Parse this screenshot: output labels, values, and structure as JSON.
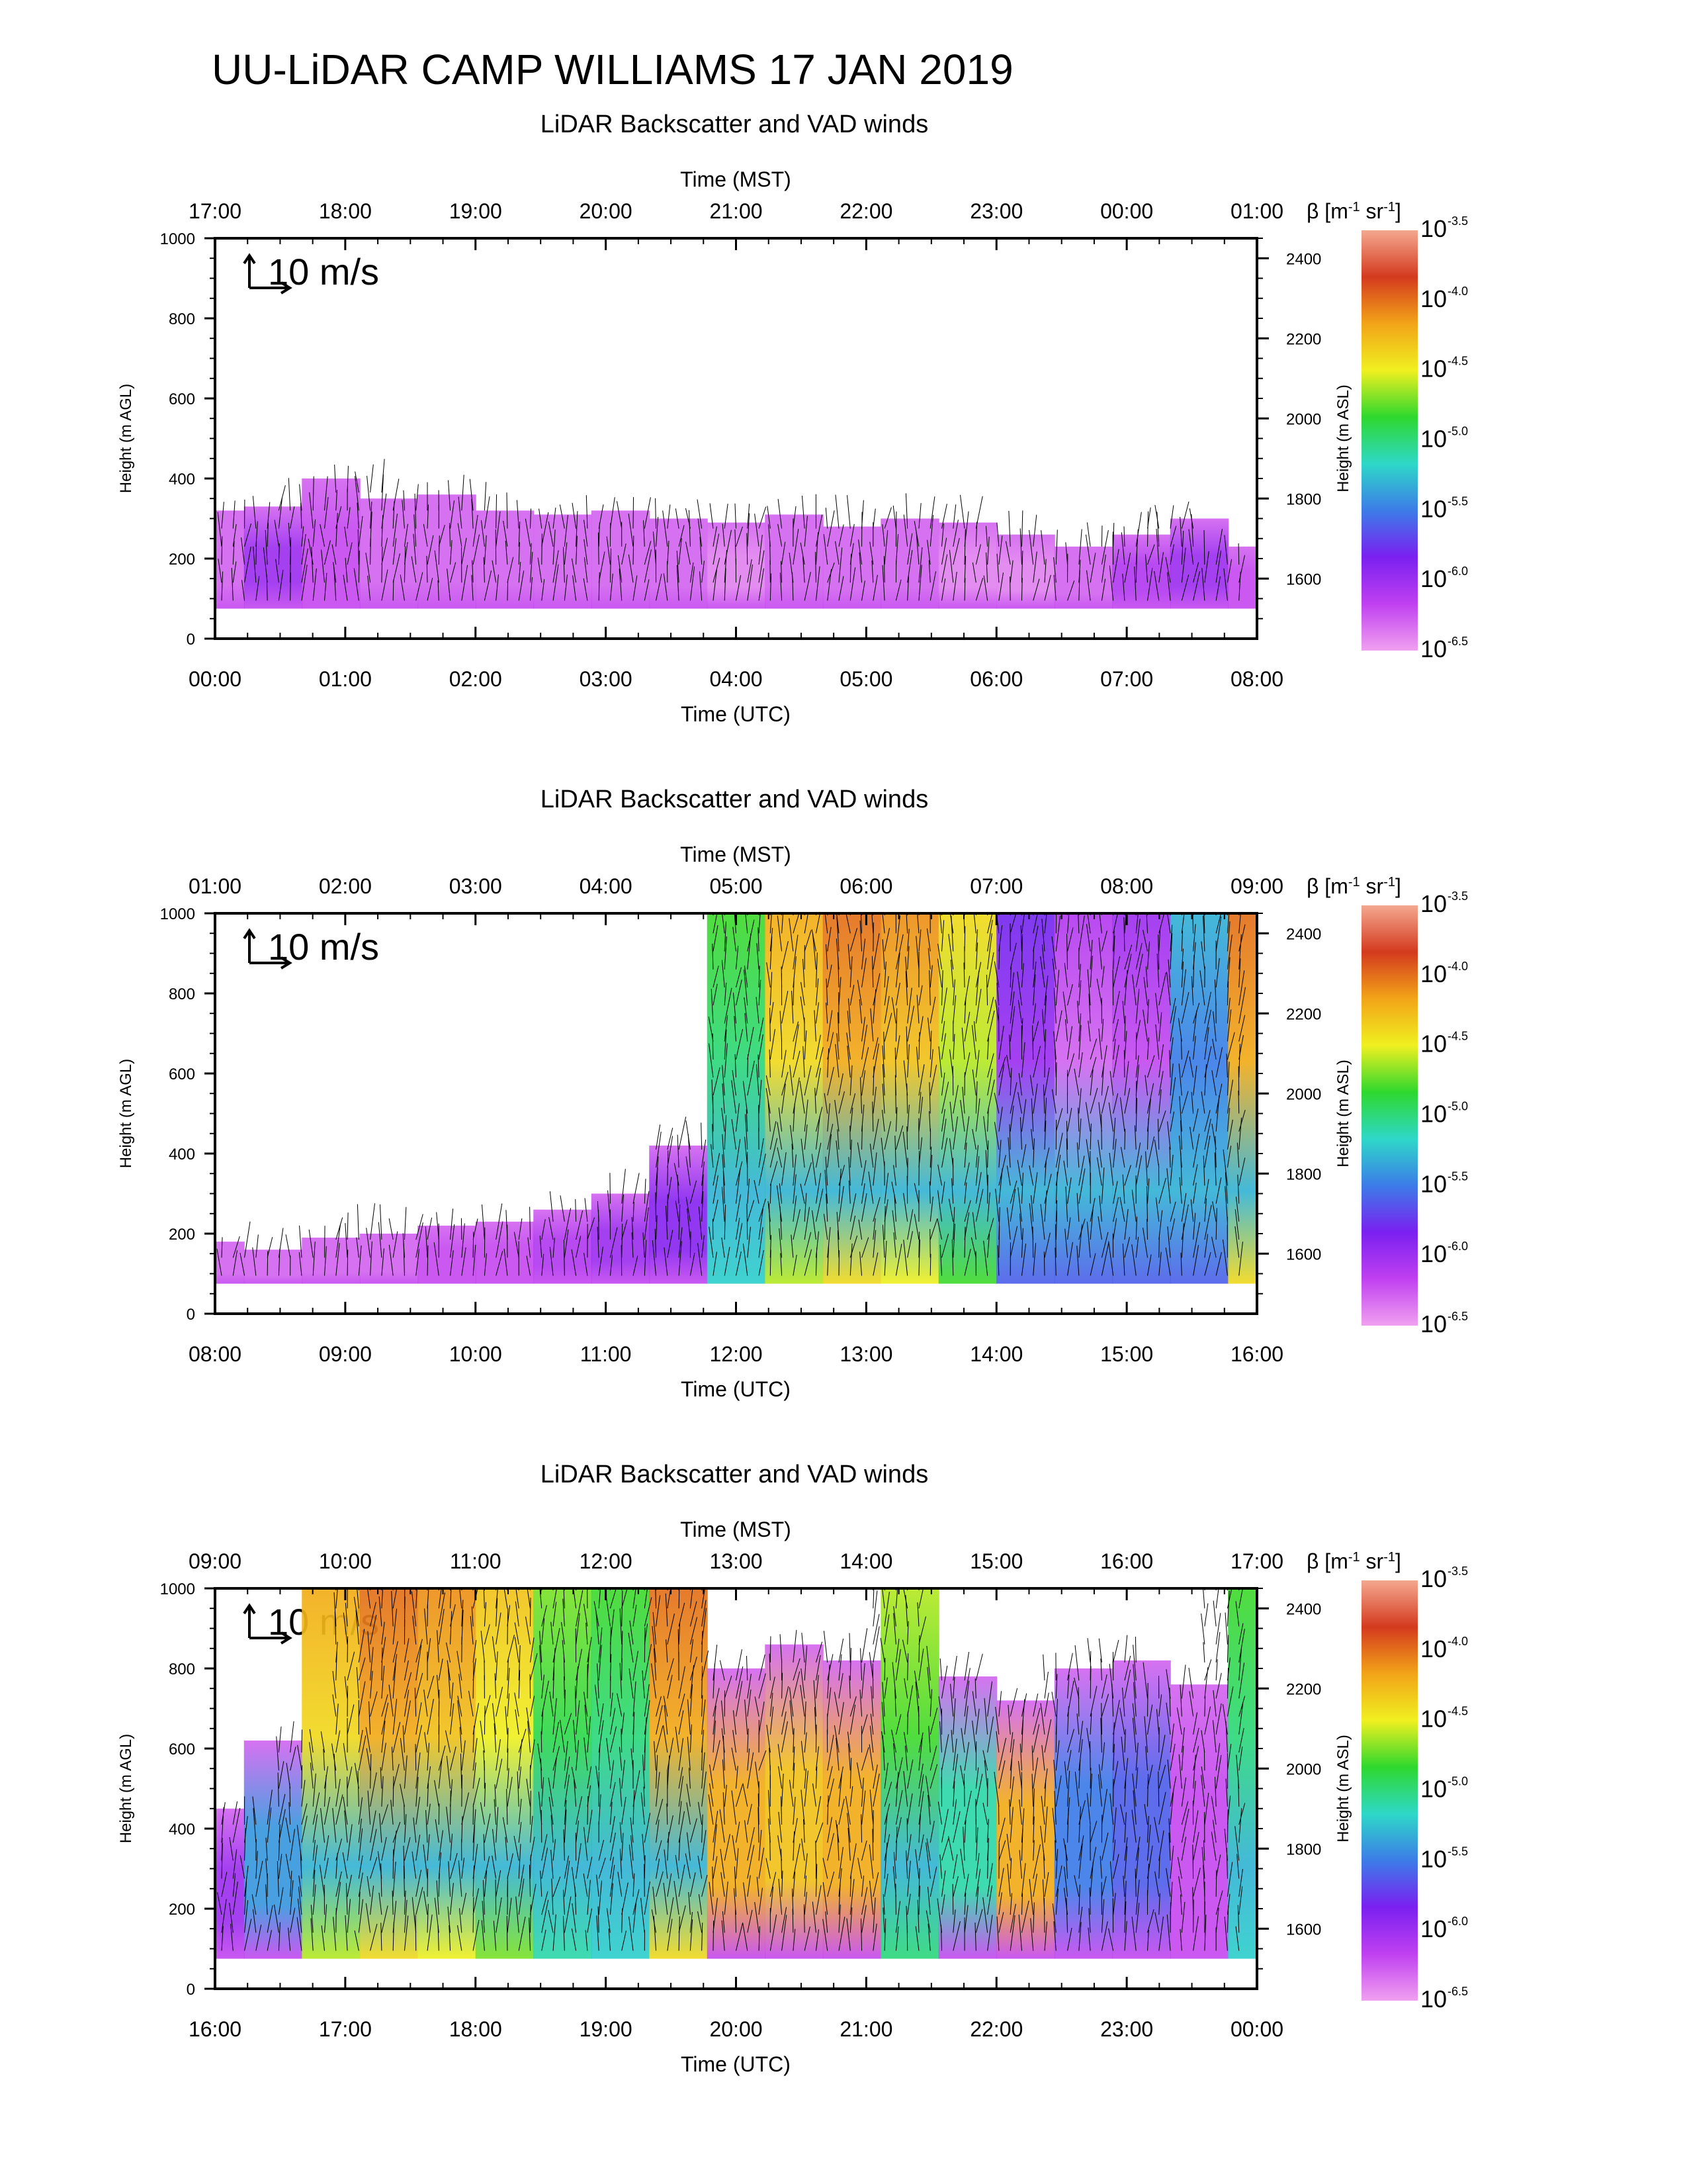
{
  "title": "UU-LiDAR CAMP WILLIAMS 17 JAN 2019",
  "scale_arrow_label": "10 m/s",
  "colorbar": {
    "label_parts": [
      "β",
      "[m",
      "-1",
      " sr",
      "-1",
      "]"
    ],
    "exponents": [
      "-3.5",
      "-4.0",
      "-4.5",
      "-5.0",
      "-5.5",
      "-6.0",
      "-6.5"
    ],
    "base": "10",
    "colors": [
      "#F4A890",
      "#D43A1E",
      "#F2A418",
      "#F0F020",
      "#2ED82E",
      "#2ED8C8",
      "#3C7CE8",
      "#7A20F0",
      "#C040F0",
      "#F0A0F0"
    ]
  },
  "chart_data": [
    {
      "type": "heatmap",
      "title": "LiDAR Backscatter and VAD winds",
      "xlabel_bottom": "Time (UTC)",
      "xlabel_top": "Time (MST)",
      "ylabel_left": "Height (m AGL)",
      "ylabel_right": "Height (m ASL)",
      "x_ticks_bottom": [
        "00:00",
        "01:00",
        "02:00",
        "03:00",
        "04:00",
        "05:00",
        "06:00",
        "07:00",
        "08:00"
      ],
      "x_ticks_top": [
        "17:00",
        "18:00",
        "19:00",
        "20:00",
        "21:00",
        "22:00",
        "23:00",
        "00:00",
        "01:00"
      ],
      "y_ticks_left": [
        "0",
        "200",
        "400",
        "600",
        "800",
        "1000"
      ],
      "y_ticks_right": [
        "1600",
        "1800",
        "2000",
        "2200",
        "2400"
      ],
      "ylim_agl": [
        0,
        1000
      ],
      "ylim_asl": [
        1450,
        2450
      ],
      "colorbar_range_log10": [
        -6.5,
        -3.5
      ],
      "layer_top_agl": [
        320,
        330,
        400,
        350,
        360,
        320,
        310,
        320,
        300,
        290,
        310,
        280,
        300,
        290,
        260,
        230,
        260,
        300,
        230
      ],
      "layer_level_log10": [
        -6.3,
        -6.0,
        -6.2,
        -6.3,
        -6.3,
        -6.3,
        -6.3,
        -6.3,
        -6.3,
        -6.4,
        -6.3,
        -6.3,
        -6.3,
        -6.4,
        -6.4,
        -6.3,
        -6.1,
        -6.0,
        -6.2
      ]
    },
    {
      "type": "heatmap",
      "title": "LiDAR Backscatter and VAD winds",
      "xlabel_bottom": "Time (UTC)",
      "xlabel_top": "Time (MST)",
      "ylabel_left": "Height (m AGL)",
      "ylabel_right": "Height (m ASL)",
      "x_ticks_bottom": [
        "08:00",
        "09:00",
        "10:00",
        "11:00",
        "12:00",
        "13:00",
        "14:00",
        "15:00",
        "16:00"
      ],
      "x_ticks_top": [
        "01:00",
        "02:00",
        "03:00",
        "04:00",
        "05:00",
        "06:00",
        "07:00",
        "08:00",
        "09:00"
      ],
      "y_ticks_left": [
        "0",
        "200",
        "400",
        "600",
        "800",
        "1000"
      ],
      "y_ticks_right": [
        "1600",
        "1800",
        "2000",
        "2200",
        "2400"
      ],
      "ylim_agl": [
        0,
        1000
      ],
      "ylim_asl": [
        1450,
        2450
      ],
      "colorbar_range_log10": [
        -6.5,
        -3.5
      ],
      "layer_top_agl": [
        180,
        160,
        190,
        200,
        220,
        230,
        260,
        300,
        420,
        1000,
        1000,
        1000,
        1000,
        1000,
        1000,
        1000,
        1000,
        1000,
        1000
      ],
      "layer_level_log10": [
        -6.3,
        -6.3,
        -6.3,
        -6.3,
        -6.2,
        -6.2,
        -6.1,
        -6.0,
        -5.9,
        -5.0,
        -4.4,
        -4.2,
        -4.3,
        -4.6,
        -6.0,
        -6.3,
        -6.2,
        -5.5,
        -4.2
      ]
    },
    {
      "type": "heatmap",
      "title": "LiDAR Backscatter and VAD winds",
      "xlabel_bottom": "Time (UTC)",
      "xlabel_top": "Time (MST)",
      "ylabel_left": "Height (m AGL)",
      "ylabel_right": "Height (m ASL)",
      "x_ticks_bottom": [
        "16:00",
        "17:00",
        "18:00",
        "19:00",
        "20:00",
        "21:00",
        "22:00",
        "23:00",
        "00:00"
      ],
      "x_ticks_top": [
        "09:00",
        "10:00",
        "11:00",
        "12:00",
        "13:00",
        "14:00",
        "15:00",
        "16:00",
        "17:00"
      ],
      "y_ticks_left": [
        "0",
        "200",
        "400",
        "600",
        "800",
        "1000"
      ],
      "y_ticks_right": [
        "1600",
        "1800",
        "2000",
        "2200",
        "2400"
      ],
      "ylim_agl": [
        0,
        1000
      ],
      "ylim_asl": [
        1450,
        2450
      ],
      "colorbar_range_log10": [
        -6.5,
        -3.5
      ],
      "layer_top_agl": [
        450,
        620,
        1000,
        1000,
        1000,
        1000,
        1000,
        1000,
        1000,
        800,
        860,
        820,
        1000,
        780,
        720,
        800,
        820,
        760,
        1000
      ],
      "layer_level_log10": [
        -6.0,
        -5.4,
        -4.4,
        -4.2,
        -4.3,
        -4.5,
        -4.9,
        -5.0,
        -4.2,
        -4.2,
        -4.3,
        -4.2,
        -4.8,
        -5.1,
        -4.2,
        -5.5,
        -5.6,
        -6.2,
        -5.0
      ]
    }
  ]
}
